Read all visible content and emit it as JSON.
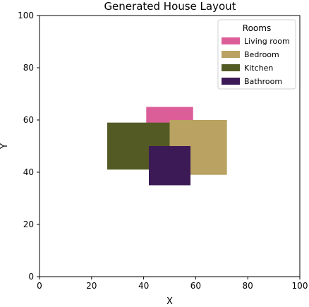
{
  "chart_data": {
    "type": "bar",
    "title": "Generated House Layout",
    "xlabel": "X",
    "ylabel": "Y",
    "xlim": [
      0,
      100
    ],
    "ylim": [
      0,
      100
    ],
    "xticks": [
      "0",
      "20",
      "40",
      "60",
      "80",
      "100"
    ],
    "yticks": [
      "0",
      "20",
      "40",
      "60",
      "80",
      "100"
    ],
    "grid": false,
    "legend": {
      "title": "Rooms",
      "placement": "top-right",
      "entries": [
        "Living room",
        "Bedroom",
        "Kitchen",
        "Bathroom"
      ]
    },
    "rooms": [
      {
        "name": "Living room",
        "x0": 41,
        "x1": 59,
        "y0": 47,
        "y1": 65,
        "color": "#dc5e99"
      },
      {
        "name": "Bedroom",
        "x0": 50,
        "x1": 72,
        "y0": 39,
        "y1": 60,
        "color": "#b9a262"
      },
      {
        "name": "Kitchen",
        "x0": 26,
        "x1": 50,
        "y0": 41,
        "y1": 59,
        "color": "#545a24"
      },
      {
        "name": "Bathroom",
        "x0": 42,
        "x1": 58,
        "y0": 35,
        "y1": 50,
        "color": "#3b1a56"
      }
    ]
  }
}
